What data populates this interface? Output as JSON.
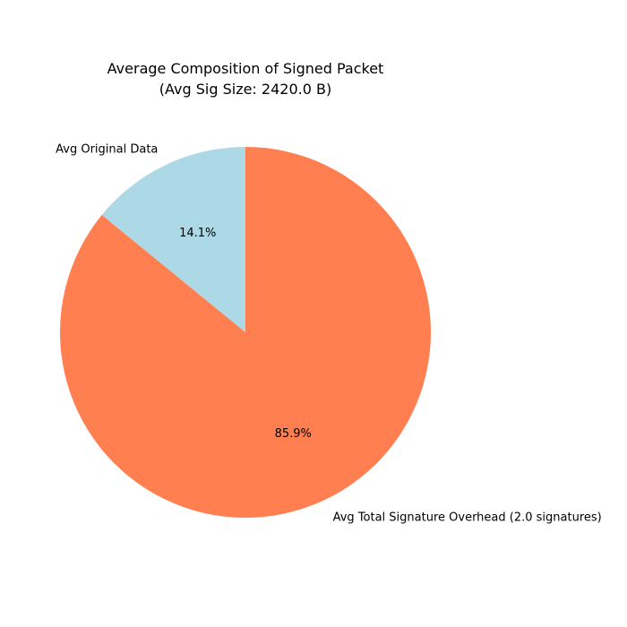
{
  "chart_data": {
    "type": "pie",
    "title": "Average Composition of Signed Packet",
    "subtitle": "(Avg Sig Size: 2420.0 B)",
    "slices": [
      {
        "label": "Avg Original Data",
        "value": 14.1,
        "pct_label": "14.1%",
        "color": "#add8e6"
      },
      {
        "label": "Avg Total Signature Overhead (2.0 signatures)",
        "value": 85.9,
        "pct_label": "85.9%",
        "color": "#ff7f50"
      }
    ],
    "start_angle": 90,
    "direction": "counterclockwise",
    "legend": "none"
  }
}
